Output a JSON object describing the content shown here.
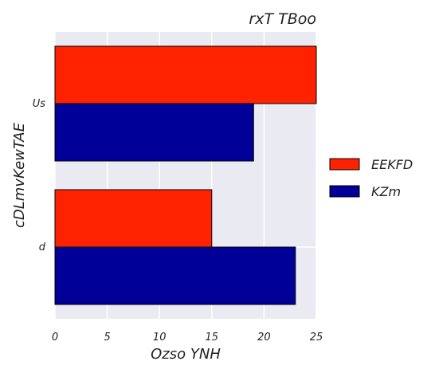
{
  "chart_data": {
    "type": "bar",
    "orientation": "horizontal",
    "title": "rxT TBoo",
    "xlabel": "Ozso YNH",
    "ylabel": "cDLmvKewTAE",
    "categories": [
      "Us",
      "d"
    ],
    "series": [
      {
        "name": "EEKFD",
        "color": "#ff2200",
        "values": [
          25,
          15
        ]
      },
      {
        "name": "KZm",
        "color": "#000099",
        "values": [
          19,
          23
        ]
      }
    ],
    "xlim": [
      0,
      25
    ],
    "xticks": [
      "0",
      "5",
      "10",
      "15",
      "20",
      "25"
    ],
    "grid": true,
    "legend_position": "right"
  }
}
